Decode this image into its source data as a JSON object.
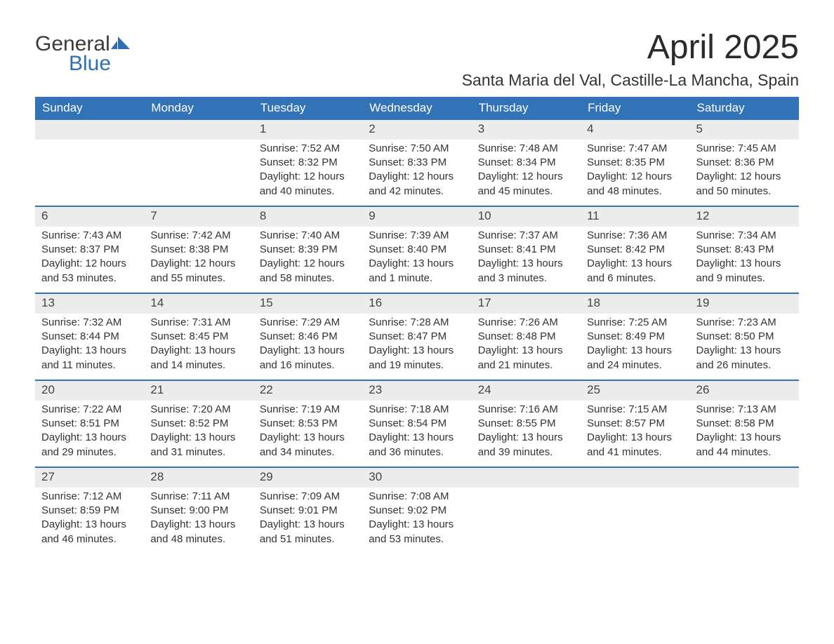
{
  "logo": {
    "text1": "General",
    "text2": "Blue",
    "accent_color": "#2f6fb1",
    "text_color": "#3a3a3a"
  },
  "title": "April 2025",
  "location": "Santa Maria del Val, Castille-La Mancha, Spain",
  "colors": {
    "header_bg": "#3273b7",
    "header_text": "#ffffff",
    "daynum_bg": "#ececec",
    "row_divider": "#3273b7",
    "body_text": "#333333",
    "page_bg": "#ffffff"
  },
  "typography": {
    "title_fontsize": 48,
    "location_fontsize": 23,
    "weekday_fontsize": 17,
    "daynum_fontsize": 17,
    "body_fontsize": 15
  },
  "layout": {
    "columns": 7,
    "rows": 5,
    "first_weekday_index": 2,
    "days_in_month": 30
  },
  "weekdays": [
    "Sunday",
    "Monday",
    "Tuesday",
    "Wednesday",
    "Thursday",
    "Friday",
    "Saturday"
  ],
  "days": [
    {
      "n": 1,
      "sunrise": "7:52 AM",
      "sunset": "8:32 PM",
      "daylight": "12 hours and 40 minutes."
    },
    {
      "n": 2,
      "sunrise": "7:50 AM",
      "sunset": "8:33 PM",
      "daylight": "12 hours and 42 minutes."
    },
    {
      "n": 3,
      "sunrise": "7:48 AM",
      "sunset": "8:34 PM",
      "daylight": "12 hours and 45 minutes."
    },
    {
      "n": 4,
      "sunrise": "7:47 AM",
      "sunset": "8:35 PM",
      "daylight": "12 hours and 48 minutes."
    },
    {
      "n": 5,
      "sunrise": "7:45 AM",
      "sunset": "8:36 PM",
      "daylight": "12 hours and 50 minutes."
    },
    {
      "n": 6,
      "sunrise": "7:43 AM",
      "sunset": "8:37 PM",
      "daylight": "12 hours and 53 minutes."
    },
    {
      "n": 7,
      "sunrise": "7:42 AM",
      "sunset": "8:38 PM",
      "daylight": "12 hours and 55 minutes."
    },
    {
      "n": 8,
      "sunrise": "7:40 AM",
      "sunset": "8:39 PM",
      "daylight": "12 hours and 58 minutes."
    },
    {
      "n": 9,
      "sunrise": "7:39 AM",
      "sunset": "8:40 PM",
      "daylight": "13 hours and 1 minute."
    },
    {
      "n": 10,
      "sunrise": "7:37 AM",
      "sunset": "8:41 PM",
      "daylight": "13 hours and 3 minutes."
    },
    {
      "n": 11,
      "sunrise": "7:36 AM",
      "sunset": "8:42 PM",
      "daylight": "13 hours and 6 minutes."
    },
    {
      "n": 12,
      "sunrise": "7:34 AM",
      "sunset": "8:43 PM",
      "daylight": "13 hours and 9 minutes."
    },
    {
      "n": 13,
      "sunrise": "7:32 AM",
      "sunset": "8:44 PM",
      "daylight": "13 hours and 11 minutes."
    },
    {
      "n": 14,
      "sunrise": "7:31 AM",
      "sunset": "8:45 PM",
      "daylight": "13 hours and 14 minutes."
    },
    {
      "n": 15,
      "sunrise": "7:29 AM",
      "sunset": "8:46 PM",
      "daylight": "13 hours and 16 minutes."
    },
    {
      "n": 16,
      "sunrise": "7:28 AM",
      "sunset": "8:47 PM",
      "daylight": "13 hours and 19 minutes."
    },
    {
      "n": 17,
      "sunrise": "7:26 AM",
      "sunset": "8:48 PM",
      "daylight": "13 hours and 21 minutes."
    },
    {
      "n": 18,
      "sunrise": "7:25 AM",
      "sunset": "8:49 PM",
      "daylight": "13 hours and 24 minutes."
    },
    {
      "n": 19,
      "sunrise": "7:23 AM",
      "sunset": "8:50 PM",
      "daylight": "13 hours and 26 minutes."
    },
    {
      "n": 20,
      "sunrise": "7:22 AM",
      "sunset": "8:51 PM",
      "daylight": "13 hours and 29 minutes."
    },
    {
      "n": 21,
      "sunrise": "7:20 AM",
      "sunset": "8:52 PM",
      "daylight": "13 hours and 31 minutes."
    },
    {
      "n": 22,
      "sunrise": "7:19 AM",
      "sunset": "8:53 PM",
      "daylight": "13 hours and 34 minutes."
    },
    {
      "n": 23,
      "sunrise": "7:18 AM",
      "sunset": "8:54 PM",
      "daylight": "13 hours and 36 minutes."
    },
    {
      "n": 24,
      "sunrise": "7:16 AM",
      "sunset": "8:55 PM",
      "daylight": "13 hours and 39 minutes."
    },
    {
      "n": 25,
      "sunrise": "7:15 AM",
      "sunset": "8:57 PM",
      "daylight": "13 hours and 41 minutes."
    },
    {
      "n": 26,
      "sunrise": "7:13 AM",
      "sunset": "8:58 PM",
      "daylight": "13 hours and 44 minutes."
    },
    {
      "n": 27,
      "sunrise": "7:12 AM",
      "sunset": "8:59 PM",
      "daylight": "13 hours and 46 minutes."
    },
    {
      "n": 28,
      "sunrise": "7:11 AM",
      "sunset": "9:00 PM",
      "daylight": "13 hours and 48 minutes."
    },
    {
      "n": 29,
      "sunrise": "7:09 AM",
      "sunset": "9:01 PM",
      "daylight": "13 hours and 51 minutes."
    },
    {
      "n": 30,
      "sunrise": "7:08 AM",
      "sunset": "9:02 PM",
      "daylight": "13 hours and 53 minutes."
    }
  ],
  "labels": {
    "sunrise": "Sunrise: ",
    "sunset": "Sunset: ",
    "daylight": "Daylight: "
  }
}
